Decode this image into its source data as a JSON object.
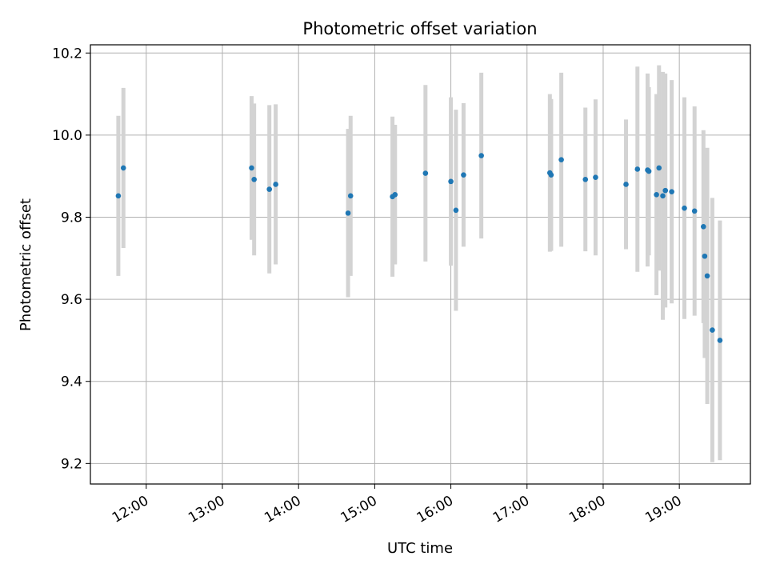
{
  "chart_data": {
    "type": "scatter",
    "title": "Photometric offset variation",
    "xlabel": "UTC time",
    "ylabel": "Photometric offset",
    "x_axis": {
      "kind": "time",
      "range": [
        "11:16",
        "19:56"
      ],
      "ticks": [
        "12:00",
        "13:00",
        "14:00",
        "15:00",
        "16:00",
        "17:00",
        "18:00",
        "19:00"
      ]
    },
    "y_axis": {
      "range": [
        9.15,
        10.22
      ],
      "ticks": [
        "9.2",
        "9.4",
        "9.6",
        "9.8",
        "10.0",
        "10.2"
      ]
    },
    "grid": true,
    "marker_color": "#1f77b4",
    "errorbar_color": "#d3d3d3",
    "series": [
      {
        "points": [
          {
            "x": "11:38",
            "y": 9.852,
            "err": 0.195
          },
          {
            "x": "11:42",
            "y": 9.92,
            "err": 0.195
          },
          {
            "x": "13:23",
            "y": 9.92,
            "err": 0.175
          },
          {
            "x": "13:25",
            "y": 9.892,
            "err": 0.185
          },
          {
            "x": "13:37",
            "y": 9.868,
            "err": 0.205
          },
          {
            "x": "13:42",
            "y": 9.88,
            "err": 0.195
          },
          {
            "x": "14:39",
            "y": 9.81,
            "err": 0.205
          },
          {
            "x": "14:41",
            "y": 9.852,
            "err": 0.195
          },
          {
            "x": "15:14",
            "y": 9.85,
            "err": 0.195
          },
          {
            "x": "15:16",
            "y": 9.855,
            "err": 0.17
          },
          {
            "x": "15:40",
            "y": 9.907,
            "err": 0.215
          },
          {
            "x": "16:00",
            "y": 9.887,
            "err": 0.205
          },
          {
            "x": "16:04",
            "y": 9.817,
            "err": 0.245
          },
          {
            "x": "16:10",
            "y": 9.903,
            "err": 0.175
          },
          {
            "x": "16:24",
            "y": 9.95,
            "err": 0.202
          },
          {
            "x": "17:18",
            "y": 9.908,
            "err": 0.192
          },
          {
            "x": "17:19",
            "y": 9.903,
            "err": 0.185
          },
          {
            "x": "17:27",
            "y": 9.94,
            "err": 0.212
          },
          {
            "x": "17:46",
            "y": 9.892,
            "err": 0.175
          },
          {
            "x": "17:54",
            "y": 9.897,
            "err": 0.19
          },
          {
            "x": "18:18",
            "y": 9.88,
            "err": 0.158
          },
          {
            "x": "18:27",
            "y": 9.917,
            "err": 0.25
          },
          {
            "x": "18:35",
            "y": 9.915,
            "err": 0.235
          },
          {
            "x": "18:36",
            "y": 9.912,
            "err": 0.205
          },
          {
            "x": "18:42",
            "y": 9.855,
            "err": 0.245
          },
          {
            "x": "18:44",
            "y": 9.92,
            "err": 0.25
          },
          {
            "x": "18:47",
            "y": 9.852,
            "err": 0.302
          },
          {
            "x": "18:49",
            "y": 9.865,
            "err": 0.285
          },
          {
            "x": "18:54",
            "y": 9.862,
            "err": 0.272
          },
          {
            "x": "19:04",
            "y": 9.822,
            "err": 0.27
          },
          {
            "x": "19:12",
            "y": 9.815,
            "err": 0.255
          },
          {
            "x": "19:19",
            "y": 9.777,
            "err": 0.235
          },
          {
            "x": "19:20",
            "y": 9.705,
            "err": 0.248
          },
          {
            "x": "19:22",
            "y": 9.657,
            "err": 0.312
          },
          {
            "x": "19:26",
            "y": 9.525,
            "err": 0.322
          },
          {
            "x": "19:32",
            "y": 9.5,
            "err": 0.292
          }
        ]
      }
    ]
  }
}
